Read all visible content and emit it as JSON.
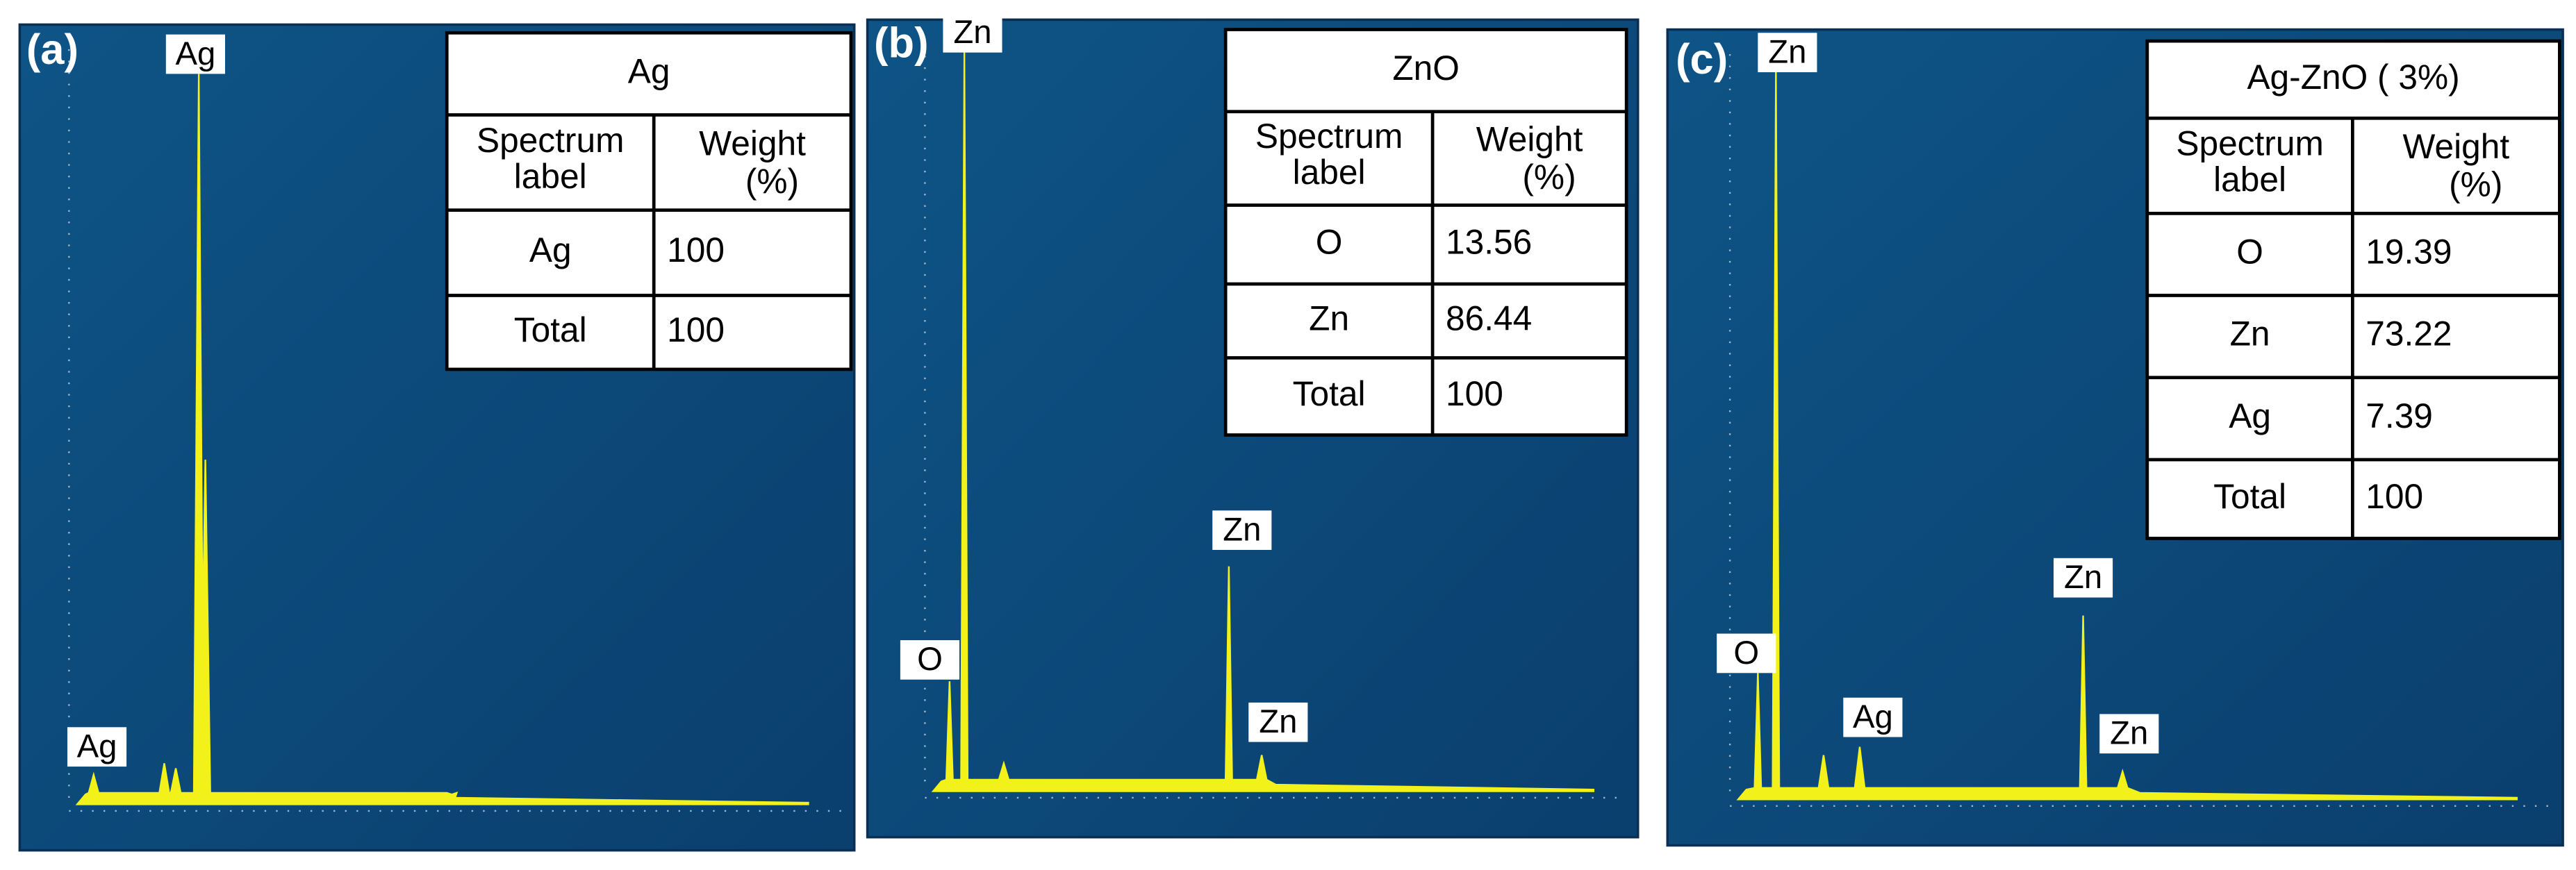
{
  "panels": [
    {
      "label": "(a)",
      "peaks": [
        "Ag",
        "Ag"
      ],
      "table": {
        "title": "Ag",
        "header": [
          [
            "Spectrum",
            "label"
          ],
          [
            "Weight",
            "(%)"
          ]
        ],
        "rows": [
          [
            "Ag",
            100
          ],
          [
            "Total",
            100
          ]
        ]
      }
    },
    {
      "label": "(b)",
      "peaks": [
        "Zn",
        "O",
        "Zn",
        "Zn"
      ],
      "table": {
        "title": "ZnO",
        "header": [
          [
            "Spectrum",
            "label"
          ],
          [
            "Weight",
            "(%)"
          ]
        ],
        "rows": [
          [
            "O",
            13.56
          ],
          [
            "Zn",
            86.44
          ],
          [
            "Total",
            100
          ]
        ]
      }
    },
    {
      "label": "(c)",
      "peaks": [
        "Zn",
        "O",
        "Ag",
        "Zn",
        "Zn"
      ],
      "table": {
        "title": "Ag-ZnO ( 3%)",
        "header": [
          [
            "Spectrum",
            "label"
          ],
          [
            "Weight",
            "(%)"
          ]
        ],
        "rows": [
          [
            "O",
            19.39
          ],
          [
            "Zn",
            73.22
          ],
          [
            "Ag",
            7.39
          ],
          [
            "Total",
            100
          ]
        ]
      }
    }
  ]
}
